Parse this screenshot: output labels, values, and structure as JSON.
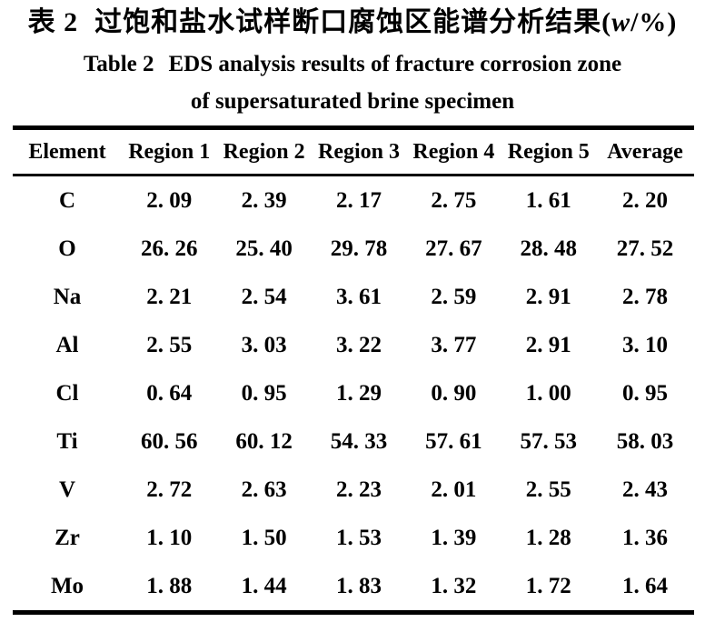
{
  "caption": {
    "zh_prefix": "表 2",
    "zh_title": "过饱和盐水试样断口腐蚀区能谱分析结果(",
    "zh_w": "w",
    "zh_suffix": "/%)",
    "en_label": "Table 2",
    "en_rest": "EDS analysis results of fracture corrosion zone",
    "en_line2": "of supersaturated brine specimen"
  },
  "table": {
    "headers": [
      "Element",
      "Region 1",
      "Region 2",
      "Region 3",
      "Region 4",
      "Region 5",
      "Average"
    ],
    "rows": [
      {
        "element": "C",
        "values": [
          "2. 09",
          "2. 39",
          "2. 17",
          "2. 75",
          "1. 61",
          "2. 20"
        ]
      },
      {
        "element": "O",
        "values": [
          "26. 26",
          "25. 40",
          "29. 78",
          "27. 67",
          "28. 48",
          "27. 52"
        ]
      },
      {
        "element": "Na",
        "values": [
          "2. 21",
          "2. 54",
          "3. 61",
          "2. 59",
          "2. 91",
          "2. 78"
        ]
      },
      {
        "element": "Al",
        "values": [
          "2. 55",
          "3. 03",
          "3. 22",
          "3. 77",
          "2. 91",
          "3. 10"
        ]
      },
      {
        "element": "Cl",
        "values": [
          "0. 64",
          "0. 95",
          "1. 29",
          "0. 90",
          "1. 00",
          "0. 95"
        ]
      },
      {
        "element": "Ti",
        "values": [
          "60. 56",
          "60. 12",
          "54. 33",
          "57. 61",
          "57. 53",
          "58. 03"
        ]
      },
      {
        "element": "V",
        "values": [
          "2. 72",
          "2. 63",
          "2. 23",
          "2. 01",
          "2. 55",
          "2. 43"
        ]
      },
      {
        "element": "Zr",
        "values": [
          "1. 10",
          "1. 50",
          "1. 53",
          "1. 39",
          "1. 28",
          "1. 36"
        ]
      },
      {
        "element": "Mo",
        "values": [
          "1. 88",
          "1. 44",
          "1. 83",
          "1. 32",
          "1. 72",
          "1. 64"
        ]
      }
    ]
  }
}
